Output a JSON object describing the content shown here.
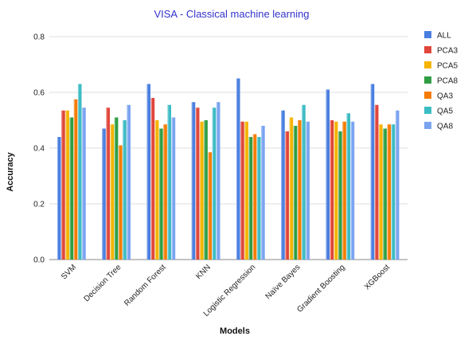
{
  "chart_data": {
    "type": "bar",
    "title": "VISA - Classical machine learning",
    "xlabel": "Models",
    "ylabel": "Accuracy",
    "ylim": [
      0,
      0.8
    ],
    "yticks": [
      "0.0",
      "0.2",
      "0.4",
      "0.6",
      "0.8"
    ],
    "grid": true,
    "legend_position": "right",
    "categories": [
      "SVM",
      "Decision Tree",
      "Random Forest",
      "KNN",
      "Logistic Regression",
      "Naïve Bayes",
      "Gradient Boosting",
      "XGBoost"
    ],
    "series": [
      {
        "name": "ALL",
        "color": "#4a7fe0",
        "values": [
          0.44,
          0.47,
          0.63,
          0.565,
          0.65,
          0.535,
          0.61,
          0.63
        ]
      },
      {
        "name": "PCA3",
        "color": "#e0463a",
        "values": [
          0.535,
          0.545,
          0.58,
          0.545,
          0.495,
          0.46,
          0.5,
          0.555
        ]
      },
      {
        "name": "PCA5",
        "color": "#f5b400",
        "values": [
          0.535,
          0.485,
          0.5,
          0.495,
          0.495,
          0.51,
          0.495,
          0.485
        ]
      },
      {
        "name": "PCA8",
        "color": "#2f9e44",
        "values": [
          0.51,
          0.51,
          0.47,
          0.5,
          0.44,
          0.48,
          0.46,
          0.47
        ]
      },
      {
        "name": "QA3",
        "color": "#f57c00",
        "values": [
          0.575,
          0.41,
          0.485,
          0.385,
          0.45,
          0.5,
          0.495,
          0.485
        ]
      },
      {
        "name": "QA5",
        "color": "#3cbcc3",
        "values": [
          0.63,
          0.5,
          0.555,
          0.545,
          0.44,
          0.555,
          0.525,
          0.485
        ]
      },
      {
        "name": "QA8",
        "color": "#7aa4f0",
        "values": [
          0.545,
          0.555,
          0.51,
          0.565,
          0.48,
          0.495,
          0.495,
          0.535
        ]
      }
    ]
  }
}
